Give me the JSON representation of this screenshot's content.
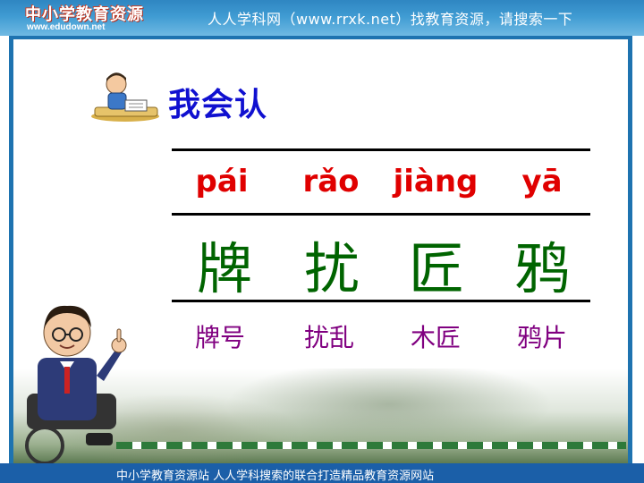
{
  "header": {
    "logo_text": "中小学教育资源",
    "logo_url": "www.edudown.net",
    "tagline": "人人学科网（www.rrxk.net）找教育资源，请搜索一下"
  },
  "lesson": {
    "heading": "我会认",
    "pinyin": [
      "pái",
      "rǎo",
      "jiàng",
      "yā"
    ],
    "characters": [
      "牌",
      "扰",
      "匠",
      "鸦"
    ],
    "words": [
      "牌号",
      "扰乱",
      "木匠",
      "鸦片"
    ]
  },
  "footer": {
    "text": "中小学教育资源站 人人学科搜索的联合打造精品教育资源网站"
  },
  "colors": {
    "heading": "#1010d0",
    "pinyin": "#e00000",
    "characters": "#006400",
    "words": "#800080",
    "header_bar": "#3f9bd2",
    "footer_bar": "#1b5fa8"
  },
  "icons": [
    "reading-student-icon",
    "teacher-illustration"
  ]
}
